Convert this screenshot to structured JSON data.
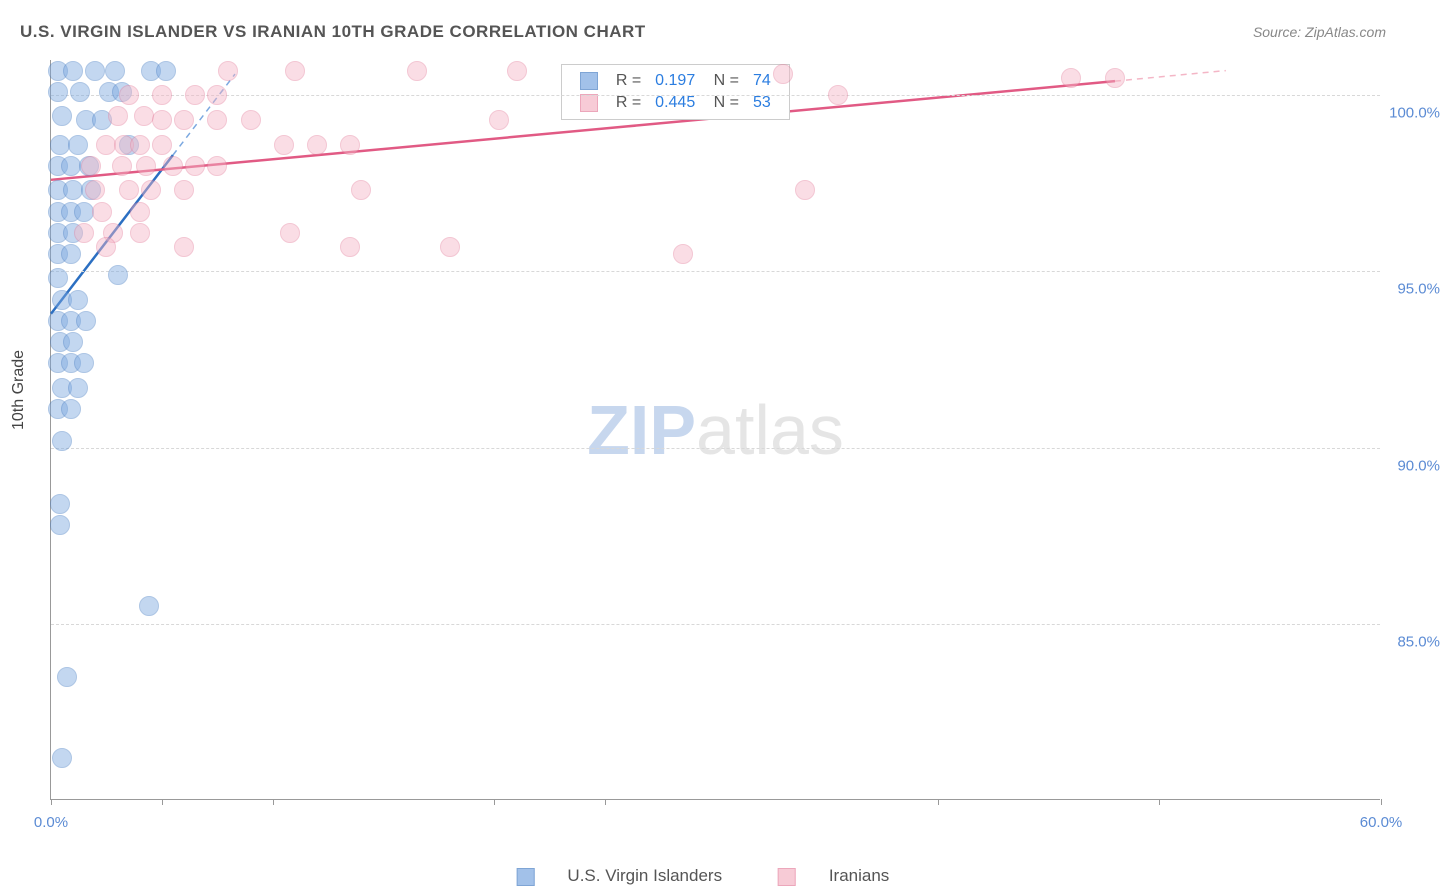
{
  "title": "U.S. VIRGIN ISLANDER VS IRANIAN 10TH GRADE CORRELATION CHART",
  "source_label": "Source: ZipAtlas.com",
  "ylabel": "10th Grade",
  "watermark": {
    "part1": "ZIP",
    "part2": "atlas",
    "color1": "#c7d7ee",
    "color2": "#e5e5e5"
  },
  "chart": {
    "type": "scatter",
    "xlim": [
      0,
      60
    ],
    "ylim": [
      80,
      101
    ],
    "xtick_positions": [
      0,
      5,
      10,
      20,
      25,
      40,
      50,
      60
    ],
    "xtick_labels": {
      "0": "0.0%",
      "60": "60.0%"
    },
    "ytick_positions": [
      85,
      90,
      95,
      100
    ],
    "ytick_labels": {
      "85": "85.0%",
      "90": "90.0%",
      "95": "95.0%",
      "100": "100.0%"
    },
    "background_color": "#ffffff",
    "grid_color": "#d8d8d8",
    "axis_color": "#999999",
    "tick_label_color": "#5b8bd4",
    "marker_radius": 10,
    "marker_opacity": 0.45,
    "series": [
      {
        "name": "U.S. Virgin Islanders",
        "color_fill": "#7ba8e0",
        "color_stroke": "#4a7fc4",
        "trend_color": "#2b6fc2",
        "trend_dash_color": "#7ba8e0",
        "R": "0.197",
        "N": "74",
        "trend_solid": {
          "x1": 0,
          "y1": 93.8,
          "x2": 5.5,
          "y2": 98.3
        },
        "trend_dash": {
          "x1": 5.5,
          "y1": 98.3,
          "x2": 8.3,
          "y2": 100.6
        },
        "points": [
          [
            0.3,
            100.7
          ],
          [
            1.0,
            100.7
          ],
          [
            2.0,
            100.7
          ],
          [
            2.9,
            100.7
          ],
          [
            4.5,
            100.7
          ],
          [
            5.2,
            100.7
          ],
          [
            0.3,
            100.1
          ],
          [
            1.3,
            100.1
          ],
          [
            2.6,
            100.1
          ],
          [
            3.2,
            100.1
          ],
          [
            0.5,
            99.4
          ],
          [
            1.6,
            99.3
          ],
          [
            2.3,
            99.3
          ],
          [
            0.4,
            98.6
          ],
          [
            1.2,
            98.6
          ],
          [
            3.5,
            98.6
          ],
          [
            0.3,
            98.0
          ],
          [
            0.9,
            98.0
          ],
          [
            1.7,
            98.0
          ],
          [
            0.3,
            97.3
          ],
          [
            1.0,
            97.3
          ],
          [
            1.8,
            97.3
          ],
          [
            0.3,
            96.7
          ],
          [
            0.9,
            96.7
          ],
          [
            1.5,
            96.7
          ],
          [
            0.3,
            96.1
          ],
          [
            1.0,
            96.1
          ],
          [
            0.3,
            95.5
          ],
          [
            0.9,
            95.5
          ],
          [
            0.3,
            94.8
          ],
          [
            3.0,
            94.9
          ],
          [
            0.5,
            94.2
          ],
          [
            1.2,
            94.2
          ],
          [
            0.3,
            93.6
          ],
          [
            0.9,
            93.6
          ],
          [
            1.6,
            93.6
          ],
          [
            0.4,
            93.0
          ],
          [
            1.0,
            93.0
          ],
          [
            0.3,
            92.4
          ],
          [
            0.9,
            92.4
          ],
          [
            1.5,
            92.4
          ],
          [
            0.5,
            91.7
          ],
          [
            1.2,
            91.7
          ],
          [
            0.3,
            91.1
          ],
          [
            0.9,
            91.1
          ],
          [
            0.5,
            90.2
          ],
          [
            0.4,
            88.4
          ],
          [
            0.4,
            87.8
          ],
          [
            4.4,
            85.5
          ],
          [
            0.7,
            83.5
          ],
          [
            0.5,
            81.2
          ]
        ]
      },
      {
        "name": "Iranians",
        "color_fill": "#f4b6c6",
        "color_stroke": "#e5829f",
        "trend_color": "#e15a84",
        "trend_dash_color": "#f4b6c6",
        "R": "0.445",
        "N": "53",
        "trend_solid": {
          "x1": 0,
          "y1": 97.6,
          "x2": 48,
          "y2": 100.4
        },
        "trend_dash": {
          "x1": 48,
          "y1": 100.4,
          "x2": 53,
          "y2": 100.7
        },
        "points": [
          [
            8.0,
            100.7
          ],
          [
            11.0,
            100.7
          ],
          [
            16.5,
            100.7
          ],
          [
            21.0,
            100.7
          ],
          [
            33.0,
            100.6
          ],
          [
            46.0,
            100.5
          ],
          [
            48.0,
            100.5
          ],
          [
            3.5,
            100.0
          ],
          [
            5.0,
            100.0
          ],
          [
            6.5,
            100.0
          ],
          [
            7.5,
            100.0
          ],
          [
            35.5,
            100.0
          ],
          [
            3.0,
            99.4
          ],
          [
            4.2,
            99.4
          ],
          [
            5.0,
            99.3
          ],
          [
            6.0,
            99.3
          ],
          [
            7.5,
            99.3
          ],
          [
            9.0,
            99.3
          ],
          [
            20.2,
            99.3
          ],
          [
            2.5,
            98.6
          ],
          [
            3.3,
            98.6
          ],
          [
            4.0,
            98.6
          ],
          [
            5.0,
            98.6
          ],
          [
            10.5,
            98.6
          ],
          [
            12.0,
            98.6
          ],
          [
            13.5,
            98.6
          ],
          [
            1.8,
            98.0
          ],
          [
            3.2,
            98.0
          ],
          [
            4.3,
            98.0
          ],
          [
            5.5,
            98.0
          ],
          [
            6.5,
            98.0
          ],
          [
            7.5,
            98.0
          ],
          [
            2.0,
            97.3
          ],
          [
            3.5,
            97.3
          ],
          [
            4.5,
            97.3
          ],
          [
            6.0,
            97.3
          ],
          [
            14.0,
            97.3
          ],
          [
            34.0,
            97.3
          ],
          [
            2.3,
            96.7
          ],
          [
            4.0,
            96.7
          ],
          [
            1.5,
            96.1
          ],
          [
            2.8,
            96.1
          ],
          [
            4.0,
            96.1
          ],
          [
            10.8,
            96.1
          ],
          [
            2.5,
            95.7
          ],
          [
            6.0,
            95.7
          ],
          [
            13.5,
            95.7
          ],
          [
            18.0,
            95.7
          ],
          [
            28.5,
            95.5
          ]
        ]
      }
    ]
  },
  "legend_top": {
    "R_color": "#2b7de0",
    "N_color": "#2b7de0",
    "text_color": "#555555"
  },
  "legend_bottom": {
    "text_color": "#555555"
  }
}
